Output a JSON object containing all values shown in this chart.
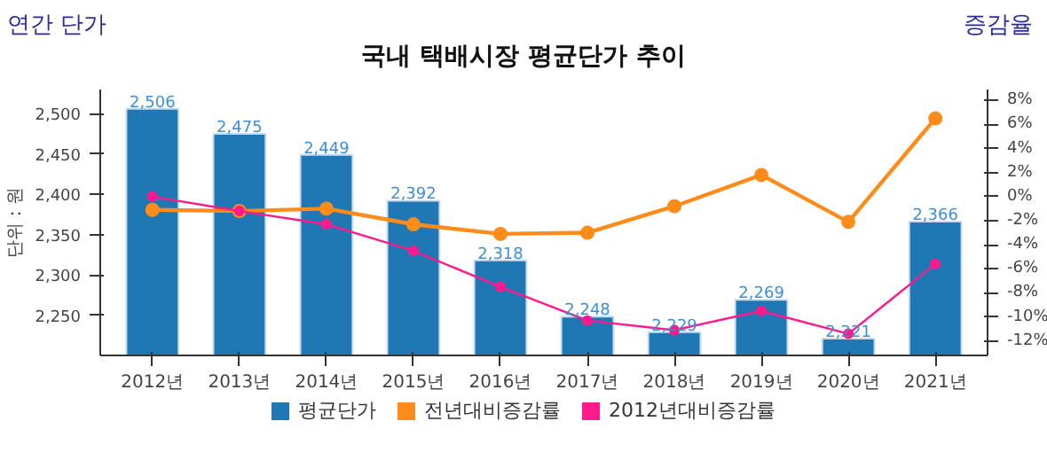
{
  "chart_data": {
    "type": "bar",
    "title": "국내 택배시장 평균단가 추이",
    "ylabel": "연간 단가",
    "y2label": "증감율",
    "annotations": [
      "단위 : 원"
    ],
    "categories": [
      "2012년",
      "2013년",
      "2014년",
      "2015년",
      "2016년",
      "2017년",
      "2018년",
      "2019년",
      "2020년",
      "2021년"
    ],
    "series": [
      {
        "name": "평균단가",
        "type": "bar",
        "color": "#1f77b4",
        "values": [
          2506,
          2475,
          2449,
          2392,
          2318,
          2248,
          2229,
          2269,
          2221,
          2366
        ],
        "value_labels": [
          "2,506",
          "2,475",
          "2,449",
          "2,392",
          "2,318",
          "2,248",
          "2,229",
          "2,269",
          "2,221",
          "2,366"
        ]
      },
      {
        "name": "전년대비증감률",
        "type": "line",
        "axis": "y2",
        "color": "#ff8c1a",
        "values": [
          -1.1,
          -1.2,
          -1.0,
          -2.3,
          -3.1,
          -3.0,
          -0.8,
          1.8,
          -2.1,
          6.5
        ]
      },
      {
        "name": "2012년대비증감률",
        "type": "line",
        "axis": "y2",
        "color": "#ff1a8c",
        "values": [
          0.0,
          -1.2,
          -2.3,
          -4.5,
          -7.5,
          -10.3,
          -11.1,
          -9.5,
          -11.4,
          -5.6
        ]
      }
    ],
    "ylim": [
      2200,
      2530
    ],
    "yticks": [
      {
        "value": 2250,
        "label": "2,250"
      },
      {
        "value": 2300,
        "label": "2,300"
      },
      {
        "value": 2350,
        "label": "2,350"
      },
      {
        "value": 2400,
        "label": "2,400"
      },
      {
        "value": 2450,
        "label": "2,450"
      },
      {
        "value": 2500,
        "label": "2,500"
      }
    ],
    "y2lim": [
      -13.2,
      8.9
    ],
    "y2ticks": [
      {
        "value": -12,
        "label": "-12%"
      },
      {
        "value": -10,
        "label": "-10%"
      },
      {
        "value": -8,
        "label": "-8%"
      },
      {
        "value": -6,
        "label": "-6%"
      },
      {
        "value": -4,
        "label": "-4%"
      },
      {
        "value": -2,
        "label": "-2%"
      },
      {
        "value": 0,
        "label": "0%"
      },
      {
        "value": 2,
        "label": "2%"
      },
      {
        "value": 4,
        "label": "4%"
      },
      {
        "value": 6,
        "label": "6%"
      },
      {
        "value": 8,
        "label": "8%"
      }
    ],
    "marker": "circle",
    "grid": false,
    "legend": "bottom"
  }
}
